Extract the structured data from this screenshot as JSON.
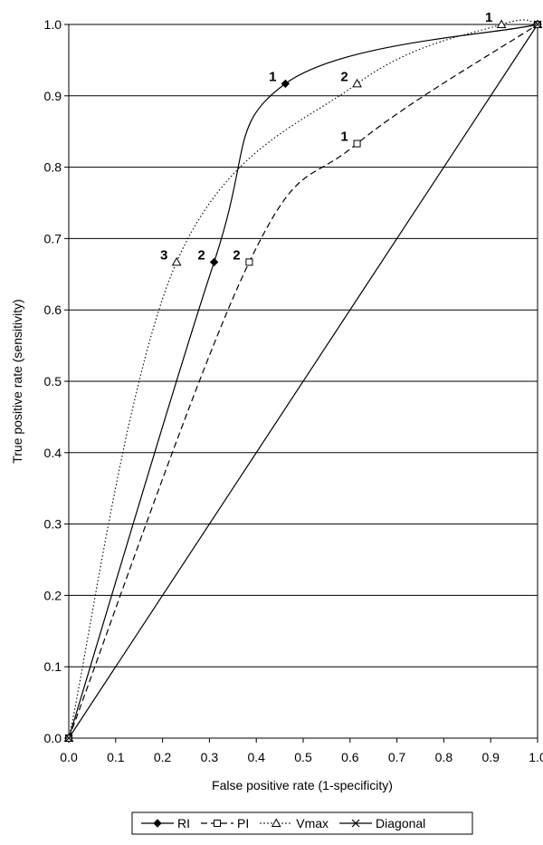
{
  "chart_data": {
    "type": "line",
    "title": "",
    "xlabel": "False positive rate (1-specificity)",
    "ylabel": "True positive rate (sensitivity)",
    "xlim": [
      0,
      1
    ],
    "ylim": [
      0,
      1
    ],
    "x_ticks": [
      "0.0",
      "0.1",
      "0.2",
      "0.3",
      "0.4",
      "0.5",
      "0.6",
      "0.7",
      "0.8",
      "0.9",
      "1.0"
    ],
    "y_ticks": [
      "0.0",
      "0.1",
      "0.2",
      "0.3",
      "0.4",
      "0.5",
      "0.6",
      "0.7",
      "0.8",
      "0.9",
      "1.0"
    ],
    "grid": "horizontal",
    "legend": "bottom",
    "series": [
      {
        "name": "RI",
        "line": "solid",
        "marker": "diamond",
        "points": [
          [
            0,
            0
          ],
          [
            0.31,
            0.667
          ],
          [
            0.462,
            0.917
          ],
          [
            1,
            1
          ]
        ],
        "labels": [
          {
            "index": 1,
            "text": "2"
          },
          {
            "index": 2,
            "text": "1"
          }
        ]
      },
      {
        "name": "PI",
        "line": "dashed",
        "marker": "square",
        "points": [
          [
            0,
            0
          ],
          [
            0.385,
            0.667
          ],
          [
            0.615,
            0.833
          ],
          [
            1,
            1
          ]
        ],
        "labels": [
          {
            "index": 1,
            "text": "2"
          },
          {
            "index": 2,
            "text": "1"
          }
        ]
      },
      {
        "name": "Vmax",
        "line": "dotted",
        "marker": "triangle",
        "points": [
          [
            0,
            0
          ],
          [
            0.23,
            0.667
          ],
          [
            0.615,
            0.917
          ],
          [
            0.923,
            1.0
          ],
          [
            1,
            1
          ]
        ],
        "labels": [
          {
            "index": 1,
            "text": "3"
          },
          {
            "index": 2,
            "text": "2"
          },
          {
            "index": 3,
            "text": "1"
          }
        ]
      },
      {
        "name": "Diagonal",
        "line": "solid",
        "marker": "x",
        "points": [
          [
            0,
            0
          ],
          [
            1,
            1
          ]
        ],
        "labels": []
      }
    ]
  }
}
